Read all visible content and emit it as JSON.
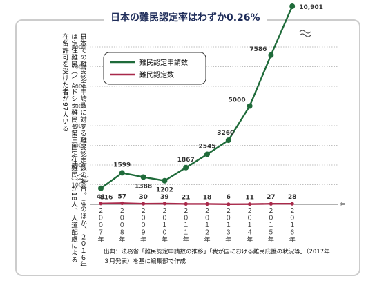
{
  "title": "日本の難民認定率はわずか0.26%",
  "note": "日本での難民認定申請数に対する難民認定数の割合。このほか、２０１６年は定住難民（インドシナ難民と第三国定住難民）が18人、人道配慮による在留許可を受けた者が97人いる",
  "source": "出典：法務省「難民認定申請数の推移」「我が国における難民庇護の状況等」（2017年３月発表）を基に編集部で作成",
  "chart_data": {
    "type": "line",
    "y_unit": "人",
    "x_unit": "年",
    "categories": [
      "2007年",
      "2008年",
      "2009年",
      "2010年",
      "2011年",
      "2012年",
      "2013年",
      "2014年",
      "2015年",
      "2016年"
    ],
    "x_display": [
      "２００７",
      "２００８",
      "２００９",
      "２０１０",
      "２０１１",
      "２０１２",
      "２０１３",
      "２０１４",
      "２０１５",
      "２０１６"
    ],
    "yticks": [
      0,
      1000,
      2000,
      3000,
      4000,
      5000,
      6000,
      7000,
      8000
    ],
    "ylim": [
      0,
      8000
    ],
    "axis_break": true,
    "legend_position": "top-left",
    "series": [
      {
        "name": "難民認定申請数",
        "color": "#1f6b3a",
        "values": [
          816,
          1599,
          1388,
          1202,
          1867,
          2545,
          3260,
          5000,
          7586,
          10901
        ],
        "labels": [
          "816",
          "1599",
          "1388",
          "1202",
          "1867",
          "2545",
          "3260",
          "5000",
          "7586",
          "10,901"
        ]
      },
      {
        "name": "難民認定数",
        "color": "#a8294a",
        "values": [
          41,
          57,
          30,
          39,
          21,
          18,
          6,
          11,
          27,
          28
        ],
        "labels": [
          "41",
          "57",
          "30",
          "39",
          "21",
          "18",
          "6",
          "11",
          "27",
          "28"
        ]
      }
    ]
  }
}
